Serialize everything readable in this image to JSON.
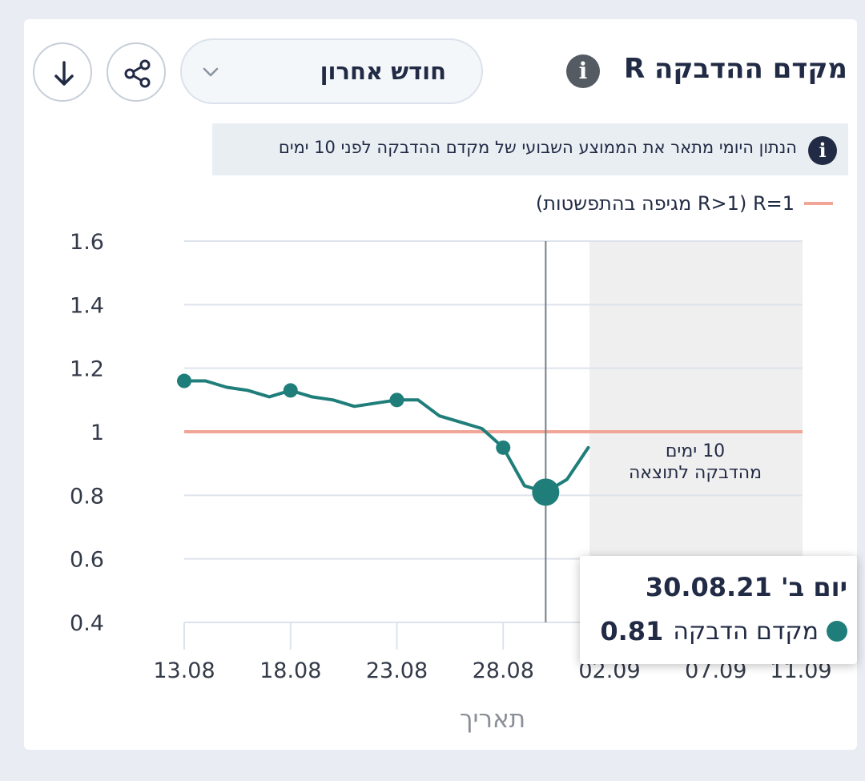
{
  "header": {
    "title": "מקדם ההדבקה R",
    "info_icon": "info-icon",
    "range_label": "חודש אחרון",
    "range_icon": "chevron-down-icon",
    "share_icon": "share-icon",
    "download_icon": "download-arrow-icon"
  },
  "note": {
    "icon": "info-icon",
    "text": "הנתון היומי מתאר את הממוצע השבועי של מקדם ההדבקה לפני 10 ימים"
  },
  "legend": {
    "text": "R=1 (R>1 מגיפה בהתפשטות)",
    "color": "#f0a596"
  },
  "tooltip": {
    "date": "יום ב' 30.08.21",
    "label": "מקדם הדבקה",
    "value": "0.81",
    "dot_color": "#1f7e7a"
  },
  "chart_data": {
    "type": "line",
    "xlabel": "תאריך",
    "ylabel": "",
    "ylim": [
      0.4,
      1.6
    ],
    "yticks": [
      "1.6",
      "1.4",
      "1.2",
      "1",
      "0.8",
      "0.6",
      "0.4"
    ],
    "xticks": [
      "13.08",
      "18.08",
      "23.08",
      "28.08",
      "02.09",
      "07.09",
      "11.09"
    ],
    "xticks_day_offset": [
      0,
      5,
      10,
      15,
      20,
      25,
      29
    ],
    "reference_line": {
      "value": 1,
      "color": "#f0a596"
    },
    "series": [
      {
        "color": "#1f7e7a",
        "x": [
          "13.08",
          "14.08",
          "15.08",
          "16.08",
          "17.08",
          "18.08",
          "19.08",
          "20.08",
          "21.08",
          "22.08",
          "23.08",
          "24.08",
          "25.08",
          "26.08",
          "27.08",
          "28.08",
          "29.08",
          "30.08",
          "31.08",
          "01.09"
        ],
        "values": [
          1.16,
          1.16,
          1.14,
          1.13,
          1.11,
          1.13,
          1.11,
          1.1,
          1.08,
          1.09,
          1.1,
          1.1,
          1.05,
          1.03,
          1.01,
          0.95,
          0.83,
          0.81,
          0.85,
          0.95
        ],
        "markers": [
          "13.08",
          "18.08",
          "23.08",
          "28.08"
        ],
        "highlight": "30.08"
      }
    ],
    "shaded_region": {
      "from": "02.09",
      "to": "11.09",
      "label_lines": [
        "10 ימים",
        "מהדבקה לתוצאה"
      ]
    },
    "crosshair": "30.08",
    "grid": true
  }
}
